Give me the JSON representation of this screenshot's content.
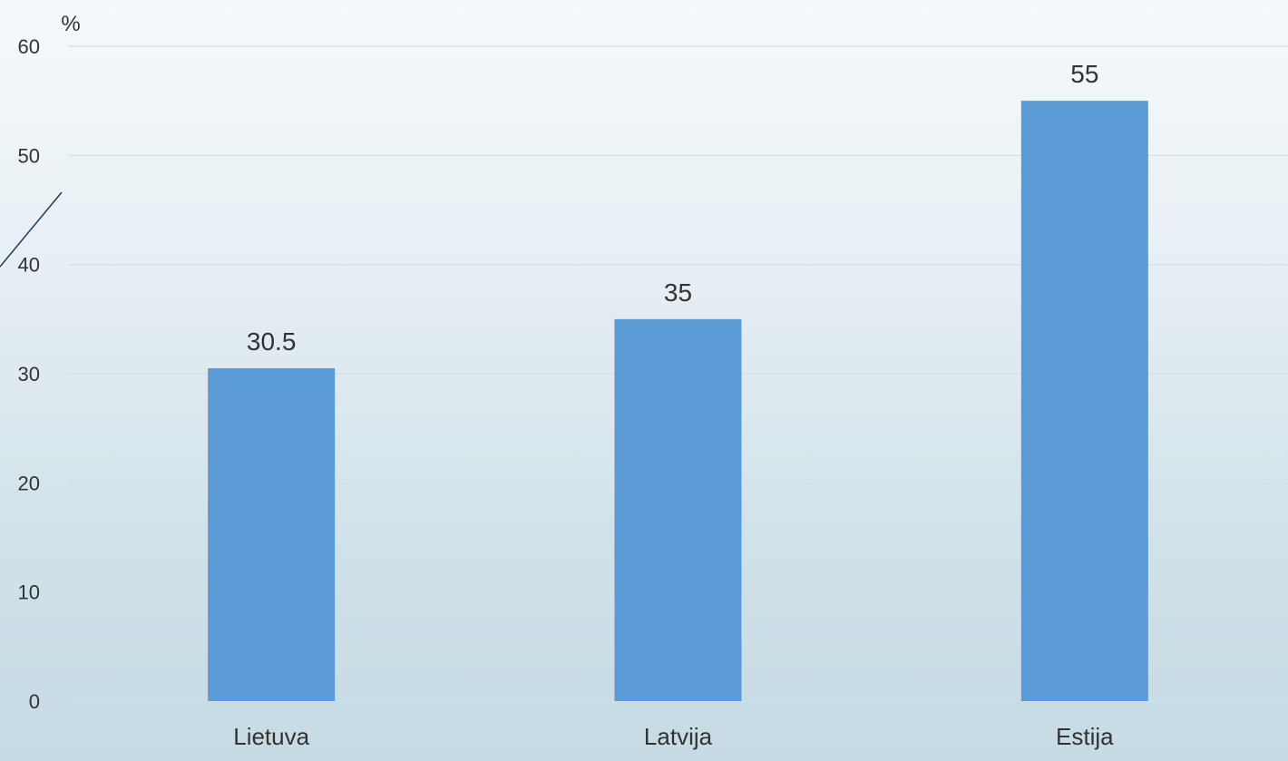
{
  "chart_data": {
    "type": "bar",
    "title": "",
    "unit_label": "%",
    "categories": [
      "Lietuva",
      "Latvija",
      "Estija"
    ],
    "values": [
      30.5,
      35,
      55
    ],
    "data_labels": [
      "30.5",
      "35",
      "55"
    ],
    "ylim": [
      0,
      60
    ],
    "yticks": [
      0,
      10,
      20,
      30,
      40,
      50,
      60
    ],
    "xlabel": "",
    "ylabel": "",
    "grid": true,
    "legend": "none",
    "bar_color": "#5b9bd5",
    "grid_color": "#d5dde2"
  }
}
